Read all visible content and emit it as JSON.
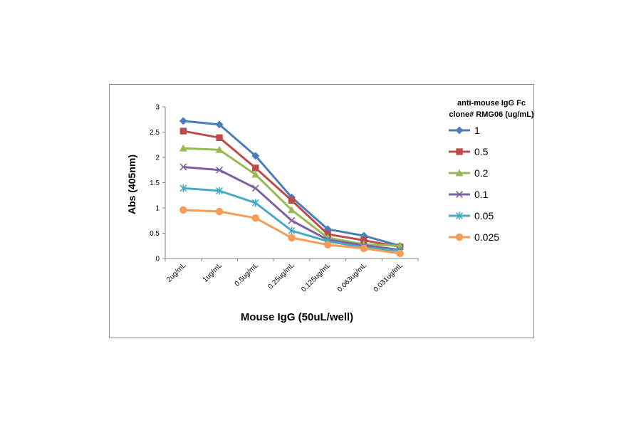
{
  "chart_data": {
    "type": "line",
    "title": "",
    "xlabel": "Mouse IgG (50uL/well)",
    "ylabel": "Abs (405nm)",
    "ylim": [
      0,
      3
    ],
    "yticks": [
      "0",
      "0.5",
      "1",
      "1.5",
      "2",
      "2.5",
      "3"
    ],
    "categories": [
      "2ug/mL",
      "1ug/mL",
      "0.5ug/mL",
      "0.25ug/mL",
      "0.125ug/mL",
      "0.063ug/mL",
      "0.031ug/mL"
    ],
    "grid": false,
    "legend": {
      "title_line1": "anti-mouse IgG Fc",
      "title_line2": "clone# RMG06 (ug/mL)",
      "position": "right"
    },
    "series": [
      {
        "name": "1",
        "marker": "diamond",
        "color": "#4a7ebb",
        "values": [
          2.72,
          2.65,
          2.03,
          1.21,
          0.58,
          0.45,
          0.25
        ]
      },
      {
        "name": "0.5",
        "marker": "square",
        "color": "#be4b48",
        "values": [
          2.52,
          2.39,
          1.79,
          1.15,
          0.48,
          0.36,
          0.23
        ]
      },
      {
        "name": "0.2",
        "marker": "triangle",
        "color": "#98b954",
        "values": [
          2.18,
          2.15,
          1.66,
          0.96,
          0.41,
          0.28,
          0.25
        ]
      },
      {
        "name": "0.1",
        "marker": "x",
        "color": "#7d60a0",
        "values": [
          1.81,
          1.75,
          1.39,
          0.75,
          0.37,
          0.26,
          0.17
        ]
      },
      {
        "name": "0.05",
        "marker": "star",
        "color": "#46aac5",
        "values": [
          1.39,
          1.34,
          1.1,
          0.55,
          0.34,
          0.22,
          0.15
        ]
      },
      {
        "name": "0.025",
        "marker": "circle",
        "color": "#f59d56",
        "values": [
          0.96,
          0.93,
          0.8,
          0.41,
          0.27,
          0.2,
          0.1
        ]
      }
    ]
  }
}
